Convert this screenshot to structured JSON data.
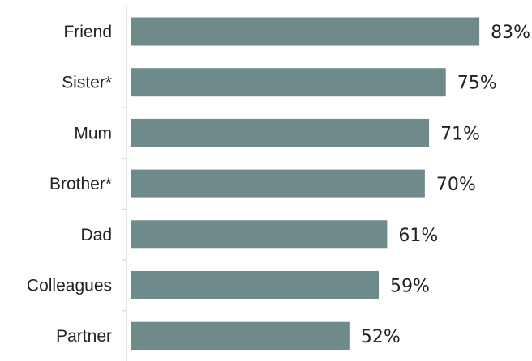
{
  "chart_data": {
    "type": "bar",
    "orientation": "horizontal",
    "categories": [
      "Friend",
      "Sister*",
      "Mum",
      "Brother*",
      "Dad",
      "Colleagues",
      "Partner"
    ],
    "values": [
      83,
      75,
      71,
      70,
      61,
      59,
      52
    ],
    "value_labels": [
      "83%",
      "75%",
      "71%",
      "70%",
      "61%",
      "59%",
      "52%"
    ],
    "xlim": [
      0,
      100
    ],
    "title": "",
    "xlabel": "",
    "ylabel": "",
    "grid": false,
    "legend": "none",
    "bar_color": "#6f8a8b"
  }
}
